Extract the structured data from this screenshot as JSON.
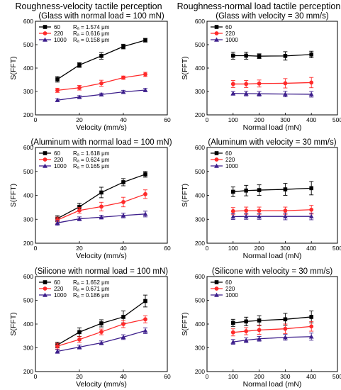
{
  "column_titles": [
    "Roughness-velocity tactile perception",
    "Roughness-normal load tactile perception"
  ],
  "colors": {
    "60": "#000000",
    "220": "#ff2a2a",
    "1000": "#3d1f8c"
  },
  "chart_data": [
    {
      "type": "line",
      "title": "(Glass with normal load = 100 mN)",
      "xlabel": "Velocity (mm/s)",
      "ylabel": "S(FFT)",
      "xlim": [
        0,
        60
      ],
      "ylim": [
        200,
        600
      ],
      "xticks": [
        0,
        20,
        40,
        60
      ],
      "yticks": [
        200,
        300,
        400,
        500,
        600
      ],
      "legend_position": "top-left",
      "x": [
        10,
        20,
        30,
        40,
        50
      ],
      "series": [
        {
          "name": "60",
          "ra": "Rₐ = 1.574 μm",
          "values": [
            352,
            413,
            452,
            492,
            519
          ],
          "errors": [
            12,
            10,
            14,
            10,
            8
          ]
        },
        {
          "name": "220",
          "ra": "Rₐ = 0.616 μm",
          "values": [
            305,
            316,
            335,
            359,
            373
          ],
          "errors": [
            9,
            10,
            13,
            7,
            9
          ]
        },
        {
          "name": "1000",
          "ra": "Rₐ = 0.158 μm",
          "values": [
            263,
            276,
            287,
            298,
            306
          ],
          "errors": [
            6,
            6,
            6,
            7,
            7
          ]
        }
      ]
    },
    {
      "type": "line",
      "title": "(Glass with velocity = 30 mm/s)",
      "xlabel": "Normal load (mN)",
      "ylabel": "S(FFT)",
      "xlim": [
        0,
        500
      ],
      "ylim": [
        200,
        600
      ],
      "xticks": [
        0,
        100,
        200,
        300,
        400,
        500
      ],
      "yticks": [
        200,
        300,
        400,
        500,
        600
      ],
      "legend_position": "top-left",
      "x": [
        100,
        150,
        200,
        300,
        400
      ],
      "series": [
        {
          "name": "60",
          "values": [
            453,
            453,
            451,
            452,
            458
          ],
          "errors": [
            15,
            15,
            10,
            18,
            14
          ]
        },
        {
          "name": "220",
          "values": [
            332,
            332,
            334,
            335,
            338
          ],
          "errors": [
            15,
            15,
            15,
            20,
            22
          ]
        },
        {
          "name": "1000",
          "values": [
            292,
            291,
            290,
            289,
            288
          ],
          "errors": [
            8,
            10,
            10,
            12,
            12
          ]
        }
      ]
    },
    {
      "type": "line",
      "title": "(Aluminum with normal load = 100 mN)",
      "xlabel": "Velocity (mm/s)",
      "ylabel": "S(FFT)",
      "xlim": [
        0,
        60
      ],
      "ylim": [
        200,
        600
      ],
      "xticks": [
        0,
        20,
        40,
        60
      ],
      "yticks": [
        200,
        300,
        400,
        500,
        600
      ],
      "legend_position": "top-left",
      "x": [
        10,
        20,
        30,
        40,
        50
      ],
      "series": [
        {
          "name": "60",
          "ra": "Rₐ = 1.618 μm",
          "values": [
            303,
            352,
            412,
            455,
            488
          ],
          "errors": [
            12,
            15,
            22,
            15,
            12
          ]
        },
        {
          "name": "220",
          "ra": "Rₐ = 0.624 μm",
          "values": [
            297,
            337,
            353,
            372,
            405
          ],
          "errors": [
            12,
            12,
            18,
            20,
            18
          ]
        },
        {
          "name": "1000",
          "ra": "Rₐ = 0.165 μm",
          "values": [
            285,
            302,
            309,
            316,
            322
          ],
          "errors": [
            10,
            8,
            8,
            10,
            12
          ]
        }
      ]
    },
    {
      "type": "line",
      "title": "(Aluminum with velocity = 30 mm/s)",
      "xlabel": "Normal load (mN)",
      "ylabel": "S(FFT)",
      "xlim": [
        0,
        500
      ],
      "ylim": [
        200,
        600
      ],
      "xticks": [
        0,
        100,
        200,
        300,
        400,
        500
      ],
      "yticks": [
        200,
        300,
        400,
        500,
        600
      ],
      "legend_position": "top-left",
      "x": [
        100,
        150,
        200,
        300,
        400
      ],
      "series": [
        {
          "name": "60",
          "values": [
            415,
            420,
            422,
            425,
            430
          ],
          "errors": [
            20,
            22,
            22,
            25,
            28
          ]
        },
        {
          "name": "220",
          "values": [
            334,
            336,
            336,
            336,
            340
          ],
          "errors": [
            15,
            15,
            15,
            15,
            18
          ]
        },
        {
          "name": "1000",
          "values": [
            311,
            312,
            312,
            312,
            312
          ],
          "errors": [
            12,
            12,
            12,
            14,
            14
          ]
        }
      ]
    },
    {
      "type": "line",
      "title": "(Silicone with normal load = 100 mN)",
      "xlabel": "Velocity (mm/s)",
      "ylabel": "S(FFT)",
      "xlim": [
        0,
        60
      ],
      "ylim": [
        200,
        600
      ],
      "xticks": [
        0,
        20,
        40,
        60
      ],
      "yticks": [
        200,
        300,
        400,
        500,
        600
      ],
      "legend_position": "top-left",
      "x": [
        10,
        20,
        30,
        40,
        50
      ],
      "series": [
        {
          "name": "60",
          "ra": "Rₐ = 1.652 μm",
          "values": [
            312,
            366,
            403,
            430,
            497
          ],
          "errors": [
            12,
            18,
            15,
            25,
            25
          ]
        },
        {
          "name": "220",
          "ra": "Rₐ = 0.671 μm",
          "values": [
            307,
            335,
            367,
            400,
            420
          ],
          "errors": [
            12,
            12,
            12,
            15,
            15
          ]
        },
        {
          "name": "1000",
          "ra": "Rₐ = 0.186 μm",
          "values": [
            285,
            303,
            321,
            345,
            372
          ],
          "errors": [
            8,
            8,
            8,
            10,
            12
          ]
        }
      ]
    },
    {
      "type": "line",
      "title": "(Silicone with velocity = 30 mm/s)",
      "xlabel": "Normal load (mN)",
      "ylabel": "S(FFT)",
      "xlim": [
        0,
        500
      ],
      "ylim": [
        200,
        600
      ],
      "xticks": [
        0,
        100,
        200,
        300,
        400,
        500
      ],
      "yticks": [
        200,
        300,
        400,
        500,
        600
      ],
      "legend_position": "top-left",
      "x": [
        100,
        150,
        200,
        300,
        400
      ],
      "series": [
        {
          "name": "60",
          "values": [
            405,
            411,
            415,
            420,
            430
          ],
          "errors": [
            15,
            18,
            20,
            25,
            25
          ]
        },
        {
          "name": "220",
          "values": [
            365,
            370,
            375,
            380,
            390
          ],
          "errors": [
            15,
            15,
            18,
            20,
            20
          ]
        },
        {
          "name": "1000",
          "values": [
            325,
            332,
            338,
            344,
            347
          ],
          "errors": [
            10,
            10,
            10,
            12,
            15
          ]
        }
      ]
    }
  ]
}
